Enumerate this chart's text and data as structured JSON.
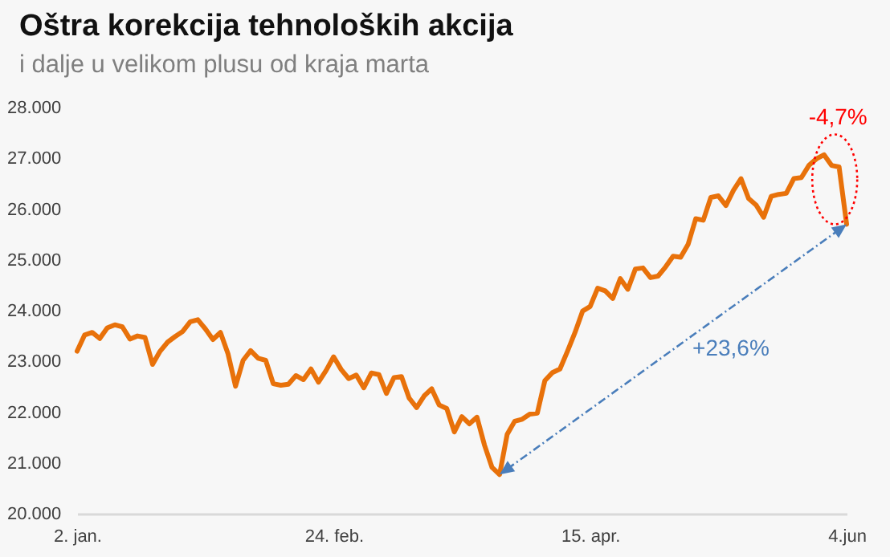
{
  "chart_data": {
    "type": "line",
    "title": "Oštra korekcija tehnoloških akcija",
    "subtitle": "i dalje u velikom plusu od kraja marta",
    "categories": [
      "2. jan.",
      null,
      null,
      null,
      null,
      null,
      null,
      null,
      null,
      null,
      null,
      null,
      null,
      null,
      null,
      null,
      null,
      null,
      null,
      null,
      null,
      null,
      null,
      null,
      null,
      null,
      null,
      null,
      null,
      null,
      null,
      null,
      null,
      null,
      "24. feb.",
      null,
      null,
      null,
      null,
      null,
      null,
      null,
      null,
      null,
      null,
      null,
      null,
      null,
      null,
      null,
      null,
      null,
      null,
      null,
      null,
      null,
      null,
      null,
      null,
      null,
      null,
      null,
      null,
      null,
      null,
      null,
      null,
      null,
      "15. apr.",
      null,
      null,
      null,
      null,
      null,
      null,
      null,
      null,
      null,
      null,
      null,
      null,
      null,
      null,
      null,
      null,
      null,
      null,
      null,
      null,
      null,
      null,
      null,
      null,
      null,
      null,
      null,
      null,
      null,
      null,
      null,
      null,
      null,
      "4.jun"
    ],
    "series": [
      {
        "color": "#e8710a",
        "values": [
          23200,
          23520,
          23570,
          23450,
          23660,
          23720,
          23680,
          23440,
          23500,
          23470,
          22940,
          23200,
          23380,
          23490,
          23590,
          23780,
          23820,
          23640,
          23430,
          23570,
          23150,
          22510,
          23020,
          23210,
          23060,
          23020,
          22560,
          22530,
          22550,
          22720,
          22640,
          22850,
          22590,
          22820,
          23090,
          22840,
          22660,
          22730,
          22480,
          22770,
          22740,
          22370,
          22680,
          22700,
          22280,
          22090,
          22320,
          22460,
          22140,
          22070,
          21610,
          21910,
          21770,
          21900,
          21350,
          20910,
          20770,
          21560,
          21820,
          21860,
          21960,
          21980,
          22620,
          22780,
          22850,
          23200,
          23570,
          23990,
          24080,
          24440,
          24390,
          24240,
          24630,
          24420,
          24820,
          24840,
          24650,
          24680,
          24860,
          25070,
          25050,
          25310,
          25810,
          25780,
          26230,
          26260,
          26070,
          26370,
          26600,
          26210,
          26080,
          25840,
          26250,
          26290,
          26310,
          26600,
          26620,
          26860,
          26990,
          27070,
          26860,
          26830,
          25700
        ]
      }
    ],
    "ylim": [
      20000,
      28000
    ],
    "yticks": [
      {
        "value": 20000,
        "label": "20.000"
      },
      {
        "value": 21000,
        "label": "21.000"
      },
      {
        "value": 22000,
        "label": "22.000"
      },
      {
        "value": 23000,
        "label": "23.000"
      },
      {
        "value": 24000,
        "label": "24.000"
      },
      {
        "value": 25000,
        "label": "25.000"
      },
      {
        "value": 26000,
        "label": "26.000"
      },
      {
        "value": 27000,
        "label": "27.000"
      },
      {
        "value": 28000,
        "label": "28.000"
      }
    ],
    "annotations": [
      "-4,7%",
      "+23,6%"
    ],
    "grid": false,
    "legend": false,
    "marker": "none",
    "line_style": "solid"
  }
}
